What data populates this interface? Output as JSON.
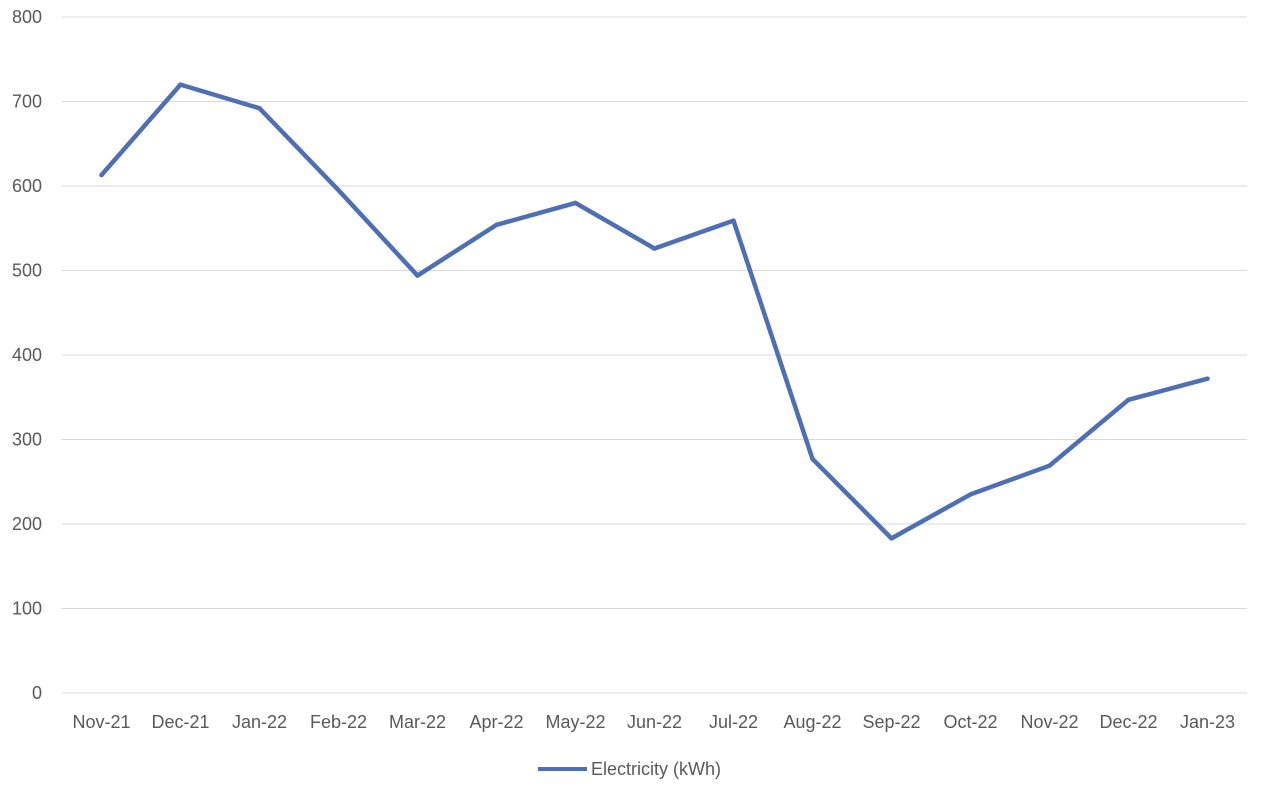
{
  "chart_data": {
    "type": "line",
    "title": "",
    "xlabel": "",
    "ylabel": "",
    "categories": [
      "Nov-21",
      "Dec-21",
      "Jan-22",
      "Feb-22",
      "Mar-22",
      "Apr-22",
      "May-22",
      "Jun-22",
      "Jul-22",
      "Aug-22",
      "Sep-22",
      "Oct-22",
      "Nov-22",
      "Dec-22",
      "Jan-23"
    ],
    "series": [
      {
        "name": "Electricity (kWh)",
        "color": "#4f6fb5",
        "values": [
          613,
          720,
          692,
          595,
          494,
          554,
          580,
          526,
          559,
          277,
          183,
          235,
          269,
          347,
          372
        ]
      }
    ],
    "ylim": [
      0,
      800
    ],
    "yticks": [
      "0",
      "100",
      "200",
      "300",
      "400",
      "500",
      "600",
      "700",
      "800"
    ],
    "grid": true,
    "legend_position": "bottom"
  }
}
